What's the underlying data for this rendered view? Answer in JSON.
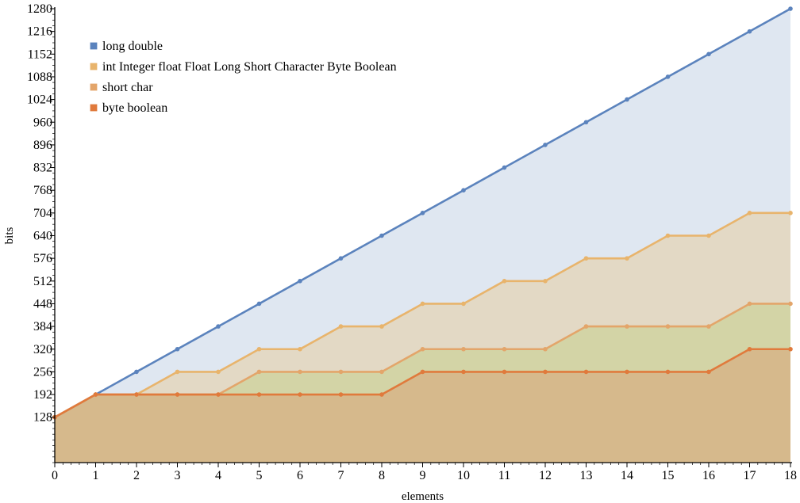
{
  "chart_data": {
    "type": "area",
    "title": "",
    "xlabel": "elements",
    "ylabel": "bits",
    "xlim": [
      0,
      18
    ],
    "ylim": [
      0,
      1280
    ],
    "x_ticks": [
      0,
      1,
      2,
      3,
      4,
      5,
      6,
      7,
      8,
      9,
      10,
      11,
      12,
      13,
      14,
      15,
      16,
      17,
      18
    ],
    "y_ticks": [
      128,
      192,
      256,
      320,
      384,
      448,
      512,
      576,
      640,
      704,
      768,
      832,
      896,
      960,
      1024,
      1088,
      1152,
      1216,
      1280
    ],
    "grid": false,
    "legend_position": "top-left",
    "x": [
      0,
      1,
      2,
      3,
      4,
      5,
      6,
      7,
      8,
      9,
      10,
      11,
      12,
      13,
      14,
      15,
      16,
      17,
      18
    ],
    "series": [
      {
        "name": "long double",
        "line_color": "#5b83bd",
        "fill_color": "#dfe7f1",
        "values": [
          128,
          192,
          256,
          320,
          384,
          448,
          512,
          576,
          640,
          704,
          768,
          832,
          896,
          960,
          1024,
          1088,
          1152,
          1216,
          1280
        ]
      },
      {
        "name": "int Integer float Float Long Short Character Byte Boolean",
        "line_color": "#e8b46c",
        "fill_color": "#e3d9c5",
        "values": [
          128,
          192,
          192,
          256,
          256,
          320,
          320,
          384,
          384,
          448,
          448,
          512,
          512,
          576,
          576,
          640,
          640,
          704,
          704
        ]
      },
      {
        "name": "short char",
        "line_color": "#e3a56a",
        "fill_color": "#d3d4a6",
        "values": [
          128,
          192,
          192,
          192,
          192,
          256,
          256,
          256,
          256,
          320,
          320,
          320,
          320,
          384,
          384,
          384,
          384,
          448,
          448
        ]
      },
      {
        "name": "byte boolean",
        "line_color": "#e07a3c",
        "fill_color": "#d6b98c",
        "values": [
          128,
          192,
          192,
          192,
          192,
          192,
          192,
          192,
          192,
          256,
          256,
          256,
          256,
          256,
          256,
          256,
          256,
          320,
          320
        ]
      }
    ]
  }
}
